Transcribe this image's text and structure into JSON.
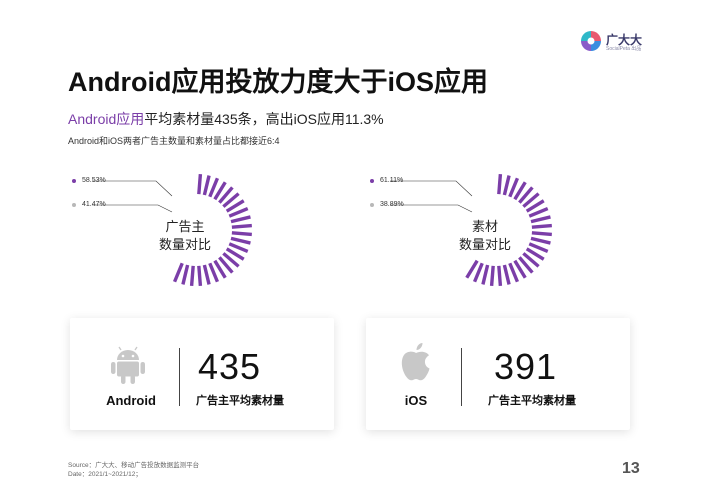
{
  "logo": {
    "name": "广大大",
    "tagline": "SocialPeta 出品"
  },
  "title": "Android应用投放力度大于iOS应用",
  "subtitle": {
    "highlight": "Android应用",
    "rest": "平均素材量435条，高出iOS应用11.3%"
  },
  "note": "Android和iOS两者广告主数量和素材量占比都接近6:4",
  "charts": [
    {
      "label_line1": "广告主",
      "label_line2": "数量对比",
      "legend": [
        {
          "text": "58.53%",
          "color": "#7b3ea8"
        },
        {
          "text": "41.47%",
          "color": "#b8b8b8"
        }
      ],
      "share": 0.5853
    },
    {
      "label_line1": "素材",
      "label_line2": "数量对比",
      "legend": [
        {
          "text": "61.11%",
          "color": "#7b3ea8"
        },
        {
          "text": "38.89%",
          "color": "#b8b8b8"
        }
      ],
      "share": 0.6111
    }
  ],
  "cards": [
    {
      "platform": "Android",
      "value": "435",
      "metric": "广告主平均素材量",
      "icon": "android-icon"
    },
    {
      "platform": "iOS",
      "value": "391",
      "metric": "广告主平均素材量",
      "icon": "apple-icon"
    }
  ],
  "source": {
    "line1": "Source：广大大、移动广告投放数据监测平台",
    "line2": "Date：2021/1~2021/12；"
  },
  "page_number": "13",
  "colors": {
    "accent": "#7b3ea8",
    "secondary": "#b8b8b8"
  }
}
